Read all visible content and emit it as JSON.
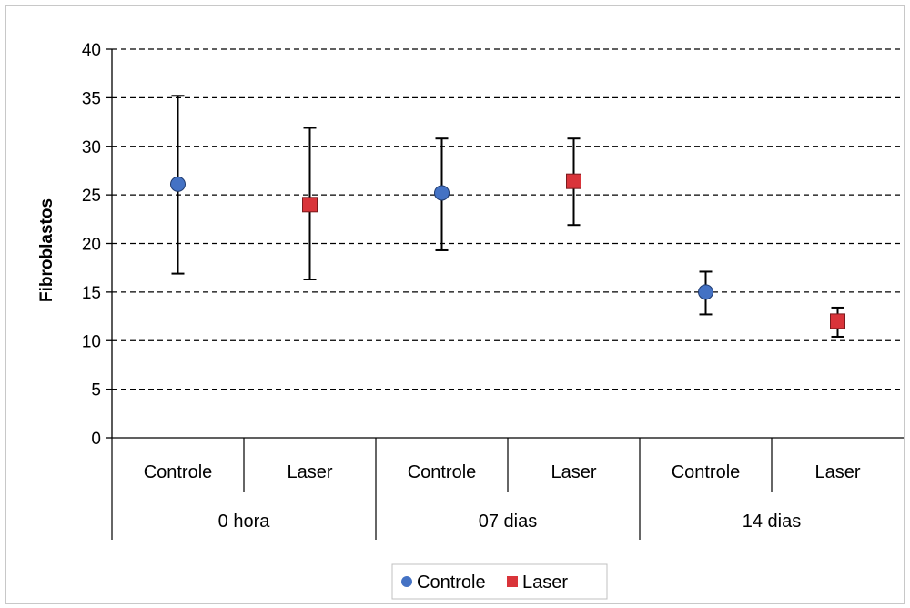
{
  "chart_data": {
    "type": "scatter",
    "ylabel": "Fibroblastos",
    "ylim": [
      0,
      40
    ],
    "yticks": [
      0,
      5,
      10,
      15,
      20,
      25,
      30,
      35,
      40
    ],
    "grid": "horizontal-dashed",
    "legend_position": "bottom",
    "groups": [
      "0 hora",
      "07 dias",
      "14 dias"
    ],
    "categories": [
      "Controle",
      "Laser",
      "Controle",
      "Laser",
      "Controle",
      "Laser"
    ],
    "series": [
      {
        "name": "Controle",
        "marker": "circle",
        "color": "#4472c4",
        "points": [
          {
            "category_index": 0,
            "y": 26.1,
            "err_low": 16.9,
            "err_high": 35.2
          },
          {
            "category_index": 2,
            "y": 25.2,
            "err_low": 19.3,
            "err_high": 30.8
          },
          {
            "category_index": 4,
            "y": 15.0,
            "err_low": 12.7,
            "err_high": 17.1
          }
        ]
      },
      {
        "name": "Laser",
        "marker": "square",
        "color": "#d9343a",
        "points": [
          {
            "category_index": 1,
            "y": 24.0,
            "err_low": 16.3,
            "err_high": 31.9
          },
          {
            "category_index": 3,
            "y": 26.4,
            "err_low": 21.9,
            "err_high": 30.8
          },
          {
            "category_index": 5,
            "y": 12.0,
            "err_low": 10.4,
            "err_high": 13.4
          }
        ]
      }
    ]
  }
}
